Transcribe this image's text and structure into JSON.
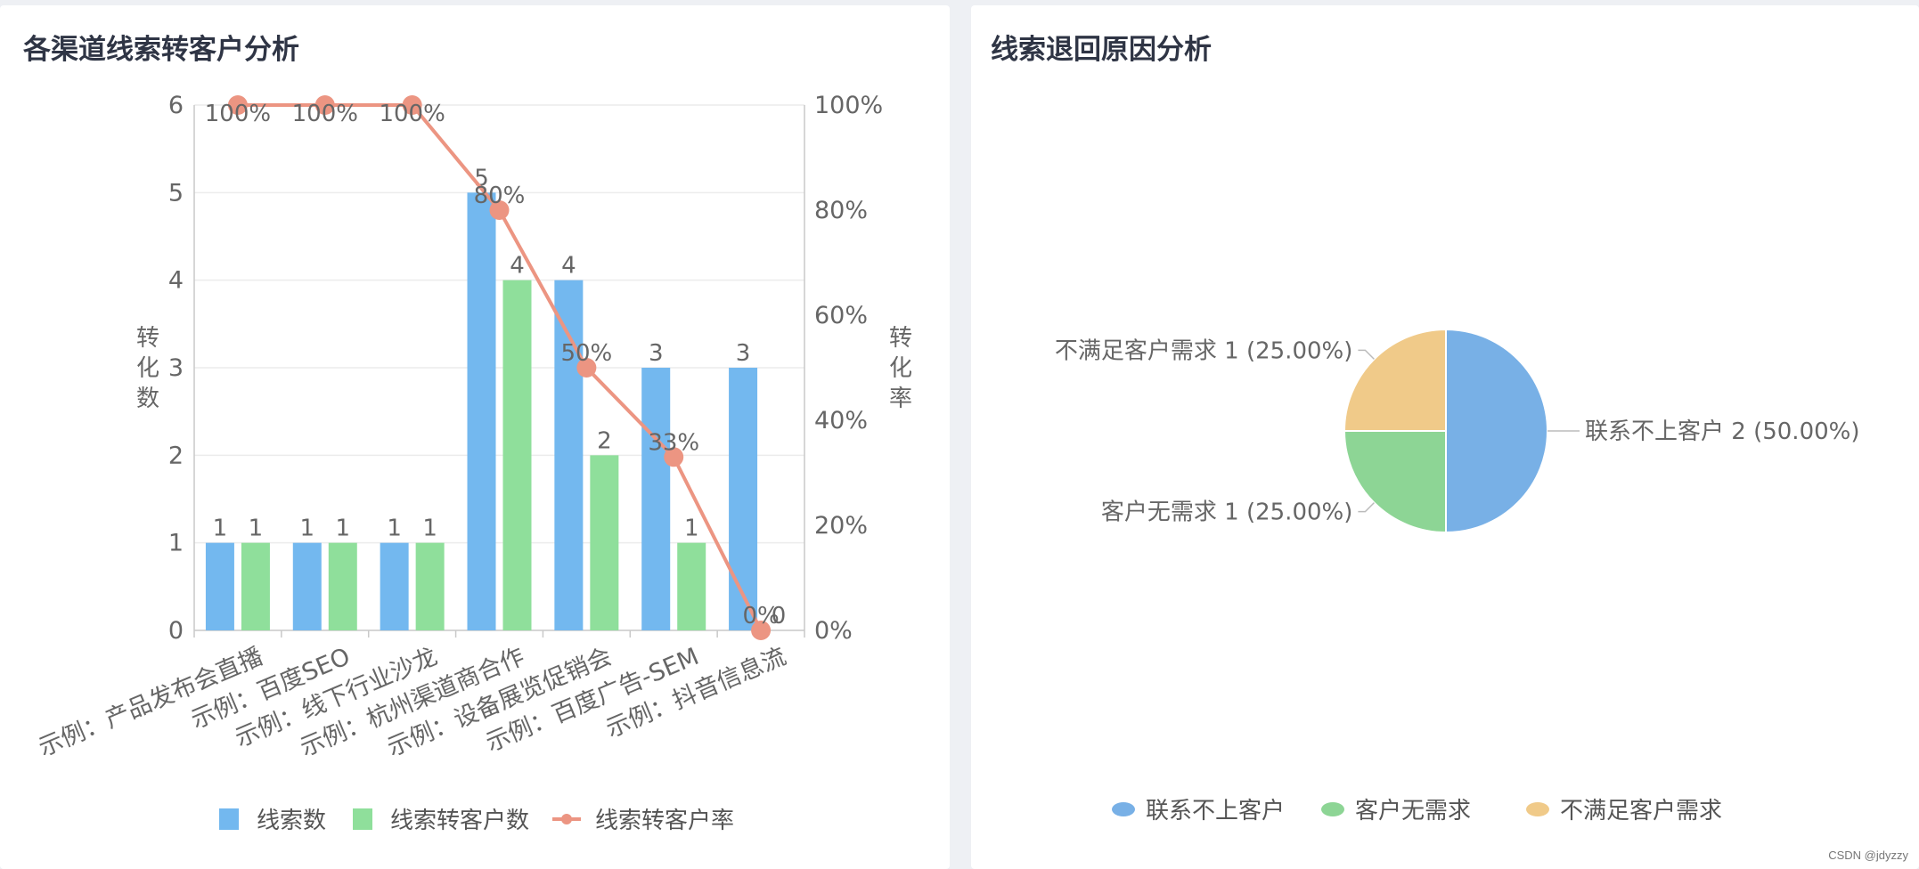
{
  "panels": {
    "left_title": "各渠道线索转客户分析",
    "right_title": "线索退回原因分析"
  },
  "watermark": "CSDN @jdyzzy",
  "colors": {
    "bar_blue": "#73b8ef",
    "bar_green": "#8fdf9b",
    "line": "#ec9582",
    "pie_blue": "#78b0e6",
    "pie_green": "#8dd595",
    "pie_yellow": "#f0ca89"
  },
  "chart_data": [
    {
      "type": "bar",
      "title": "各渠道线索转客户分析",
      "categories": [
        "示例：产品发布会直播",
        "示例：百度SEO",
        "示例：线下行业沙龙",
        "示例：杭州渠道商合作",
        "示例：设备展览促销会",
        "示例：百度广告-SEM",
        "示例：抖音信息流"
      ],
      "ylabel": "转化数",
      "y2label": "转化率",
      "ylim": [
        0,
        6
      ],
      "yticks": [
        "0",
        "1",
        "2",
        "3",
        "4",
        "5",
        "6"
      ],
      "y2lim": [
        0,
        100
      ],
      "y2ticks": [
        "0%",
        "20%",
        "40%",
        "60%",
        "80%",
        "100%"
      ],
      "grid": true,
      "legend_position": "bottom",
      "series": [
        {
          "name": "线索数",
          "type": "bar",
          "values": [
            1,
            1,
            1,
            5,
            4,
            3,
            3
          ],
          "labels": [
            "1",
            "1",
            "1",
            "5",
            "4",
            "3",
            "3"
          ]
        },
        {
          "name": "线索转客户数",
          "type": "bar",
          "values": [
            1,
            1,
            1,
            4,
            2,
            1,
            0
          ],
          "labels": [
            "1",
            "1",
            "1",
            "4",
            "2",
            "1",
            "0"
          ]
        },
        {
          "name": "线索转客户率",
          "type": "line",
          "axis": "right",
          "values": [
            100,
            100,
            100,
            80,
            50,
            33,
            0
          ],
          "labels": [
            "100%",
            "100%",
            "100%",
            "80%",
            "50%",
            "33%",
            "0%"
          ]
        }
      ]
    },
    {
      "type": "pie",
      "title": "线索退回原因分析",
      "legend_position": "bottom",
      "slices": [
        {
          "name": "联系不上客户",
          "value": 2,
          "label": "联系不上客户 2 (50.00%)"
        },
        {
          "name": "客户无需求",
          "value": 1,
          "label": "客户无需求 1 (25.00%)"
        },
        {
          "name": "不满足客户需求",
          "value": 1,
          "label": "不满足客户需求 1 (25.00%)"
        }
      ]
    }
  ]
}
